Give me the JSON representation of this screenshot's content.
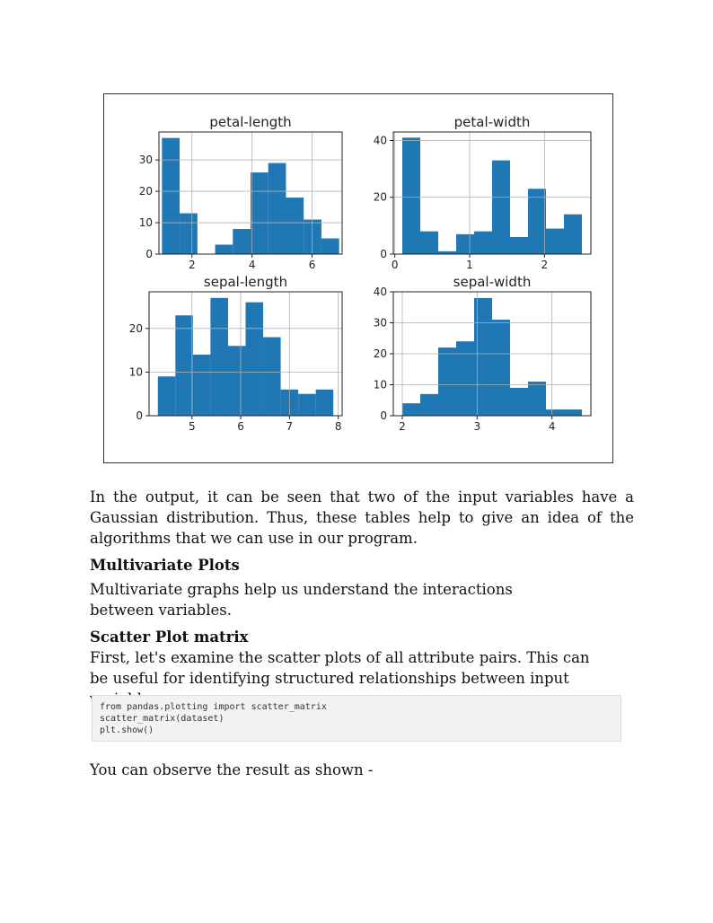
{
  "chart_data": [
    {
      "type": "bar",
      "title": "petal-length",
      "bins": [
        [
          1.0,
          1.59
        ],
        [
          1.59,
          2.18
        ],
        [
          2.18,
          2.77
        ],
        [
          2.77,
          3.36
        ],
        [
          3.36,
          3.95
        ],
        [
          3.95,
          4.54
        ],
        [
          4.54,
          5.13
        ],
        [
          5.13,
          5.72
        ],
        [
          5.72,
          6.31
        ],
        [
          6.31,
          6.9
        ]
      ],
      "values": [
        37,
        13,
        0,
        3,
        8,
        26,
        29,
        18,
        11,
        5
      ],
      "xlim": [
        0.9,
        7.0
      ],
      "ylim": [
        0,
        38.9
      ],
      "xticks": [
        2,
        4,
        6
      ],
      "yticks": [
        0,
        10,
        20,
        30
      ],
      "grid": true,
      "color": "#1f77b4"
    },
    {
      "type": "bar",
      "title": "petal-width",
      "bins": [
        [
          0.1,
          0.34
        ],
        [
          0.34,
          0.58
        ],
        [
          0.58,
          0.82
        ],
        [
          0.82,
          1.06
        ],
        [
          1.06,
          1.3
        ],
        [
          1.3,
          1.54
        ],
        [
          1.54,
          1.78
        ],
        [
          1.78,
          2.02
        ],
        [
          2.02,
          2.26
        ],
        [
          2.26,
          2.5
        ]
      ],
      "values": [
        41,
        8,
        1,
        7,
        8,
        33,
        6,
        23,
        9,
        14
      ],
      "xlim": [
        -0.02,
        2.62
      ],
      "ylim": [
        0,
        43
      ],
      "xticks": [
        0,
        1,
        2
      ],
      "yticks": [
        0,
        20,
        40
      ],
      "grid": true,
      "color": "#1f77b4"
    },
    {
      "type": "bar",
      "title": "sepal-length",
      "bins": [
        [
          4.3,
          4.66
        ],
        [
          4.66,
          5.02
        ],
        [
          5.02,
          5.38
        ],
        [
          5.38,
          5.74
        ],
        [
          5.74,
          6.1
        ],
        [
          6.1,
          6.46
        ],
        [
          6.46,
          6.82
        ],
        [
          6.82,
          7.18
        ],
        [
          7.18,
          7.54
        ],
        [
          7.54,
          7.9
        ]
      ],
      "values": [
        9,
        23,
        14,
        27,
        16,
        26,
        18,
        6,
        5,
        6
      ],
      "xlim": [
        4.12,
        8.08
      ],
      "ylim": [
        0,
        28.4
      ],
      "xticks": [
        5,
        6,
        7,
        8
      ],
      "yticks": [
        0,
        10,
        20
      ],
      "grid": true,
      "color": "#1f77b4"
    },
    {
      "type": "bar",
      "title": "sepal-width",
      "bins": [
        [
          2.0,
          2.24
        ],
        [
          2.24,
          2.48
        ],
        [
          2.48,
          2.72
        ],
        [
          2.72,
          2.96
        ],
        [
          2.96,
          3.2
        ],
        [
          3.2,
          3.44
        ],
        [
          3.44,
          3.68
        ],
        [
          3.68,
          3.92
        ],
        [
          3.92,
          4.16
        ],
        [
          4.16,
          4.4
        ]
      ],
      "values": [
        4,
        7,
        22,
        24,
        38,
        31,
        9,
        11,
        2,
        2
      ],
      "xlim": [
        1.88,
        4.52
      ],
      "ylim": [
        0,
        40
      ],
      "xticks": [
        2,
        3,
        4
      ],
      "yticks": [
        0,
        10,
        20,
        30,
        40
      ],
      "grid": true,
      "color": "#1f77b4"
    }
  ],
  "text": {
    "para1": "In the output, it can be seen that two of the input variables have a Gaussian distribution. Thus, these tables help to give an idea of the algorithms that we can use in our program.",
    "heading1": "Multivariate Plots",
    "para2": "Multivariate graphs help us understand the interactions between variables.",
    "heading2": "Scatter Plot matrix",
    "para3": "First, let's examine the scatter plots of all attribute pairs. This can be useful for identifying structured relationships between input variables.",
    "code": [
      "from pandas.plotting import scatter_matrix",
      "scatter_matrix(dataset)",
      "plt.show()"
    ],
    "para4": "You can observe the result as shown -"
  }
}
